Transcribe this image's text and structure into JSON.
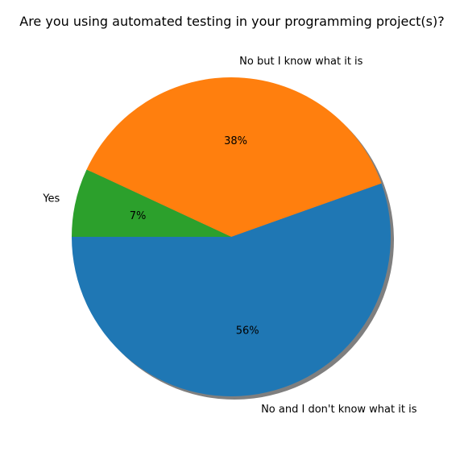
{
  "chart_data": {
    "type": "pie",
    "title": "Are you using automated testing in your programming project(s)?",
    "slices": [
      {
        "label": "No and I don't know what it is",
        "value": 56,
        "pct_label": "56%",
        "color": "#1f77b4"
      },
      {
        "label": "No but I know what it is",
        "value": 38,
        "pct_label": "38%",
        "color": "#ff7f0e"
      },
      {
        "label": "Yes",
        "value": 7,
        "pct_label": "7%",
        "color": "#2ca02c"
      }
    ],
    "start_angle_deg": 180,
    "direction": "counterclockwise",
    "shadow": true
  }
}
